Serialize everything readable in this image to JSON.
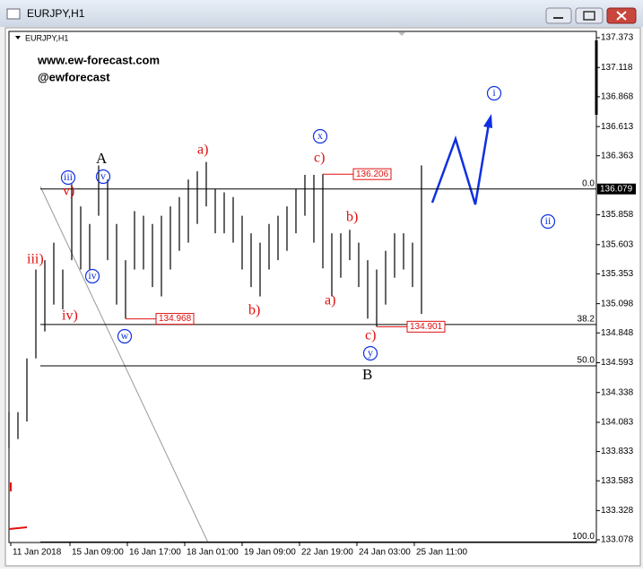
{
  "window": {
    "title": "EURJPY,H1"
  },
  "chart_data": {
    "type": "ohlc",
    "title": "EURJPY,H1",
    "watermark": [
      "www.ew-forecast.com",
      "@ewforecast"
    ],
    "color": "#000000",
    "x": [
      0,
      5,
      10,
      15,
      20,
      25,
      30,
      35,
      40,
      45,
      50,
      55,
      60,
      65,
      70,
      75,
      80,
      85,
      90,
      95,
      100,
      105,
      110,
      115,
      120,
      125,
      130,
      135,
      140,
      145,
      150,
      155,
      160,
      165,
      170,
      175,
      180,
      185,
      190,
      195,
      200,
      205,
      210,
      215,
      220,
      225,
      230
    ],
    "highs": [
      134.17,
      134.17,
      134.63,
      135.39,
      135.47,
      135.62,
      135.39,
      136.12,
      135.93,
      135.78,
      136.28,
      136.16,
      135.78,
      135.47,
      135.89,
      135.85,
      135.78,
      135.85,
      135.93,
      136.01,
      136.16,
      136.23,
      136.31,
      136.08,
      136.05,
      136.01,
      135.85,
      135.7,
      135.62,
      135.78,
      135.85,
      135.93,
      136.08,
      136.2,
      136.2,
      136.206,
      135.7,
      135.7,
      135.73,
      135.62,
      135.47,
      135.39,
      135.55,
      135.7,
      135.7,
      135.62,
      136.28
    ],
    "lows": [
      133.86,
      133.94,
      134.09,
      134.63,
      134.86,
      135.09,
      135.05,
      135.47,
      135.39,
      135.39,
      135.85,
      135.47,
      135.09,
      134.97,
      135.39,
      135.39,
      135.24,
      135.16,
      135.39,
      135.55,
      135.62,
      135.78,
      135.93,
      135.7,
      135.7,
      135.62,
      135.39,
      135.24,
      135.16,
      135.39,
      135.47,
      135.55,
      135.7,
      135.85,
      135.62,
      135.4,
      135.16,
      135.32,
      135.47,
      135.24,
      134.97,
      134.901,
      135.09,
      135.32,
      135.39,
      135.24,
      135.01
    ],
    "xlim": [
      0,
      327.5
    ],
    "xticks": [
      {
        "value": 1,
        "label": "11 Jan 2018"
      },
      {
        "value": 34,
        "label": "15 Jan 09:00"
      },
      {
        "value": 66,
        "label": "16 Jan 17:00"
      },
      {
        "value": 98,
        "label": "18 Jan 01:00"
      },
      {
        "value": 130,
        "label": "19 Jan 09:00"
      },
      {
        "value": 162,
        "label": "22 Jan 19:00"
      },
      {
        "value": 194,
        "label": "24 Jan 03:00"
      },
      {
        "value": 226,
        "label": "25 Jan 11:00"
      }
    ],
    "ylim": [
      133.055,
      137.427
    ],
    "yticks": [
      137.373,
      137.118,
      136.868,
      136.613,
      136.363,
      135.858,
      135.603,
      135.353,
      135.098,
      134.848,
      134.593,
      134.338,
      134.083,
      133.833,
      133.583,
      133.328,
      133.078
    ],
    "current_price": 136.079,
    "price_labels": [
      {
        "x": 175,
        "value": 136.206
      },
      {
        "x": 65,
        "value": 134.968
      },
      {
        "x": 205,
        "value": 134.901
      }
    ],
    "fib_levels": [
      {
        "value": 136.079,
        "label": "0.0"
      },
      {
        "value": 134.92,
        "label": "38.2"
      },
      {
        "value": 134.566,
        "label": "50.0"
      },
      {
        "value": 133.06,
        "label": "100.0"
      }
    ],
    "annotations": [
      "A",
      "v)",
      "iii",
      "v",
      "iii)",
      "iv",
      "iv)",
      "w",
      "a)",
      "b)",
      "x",
      "c)",
      "b)",
      "a)",
      "c)",
      "y",
      "B",
      "i",
      "ii"
    ]
  }
}
